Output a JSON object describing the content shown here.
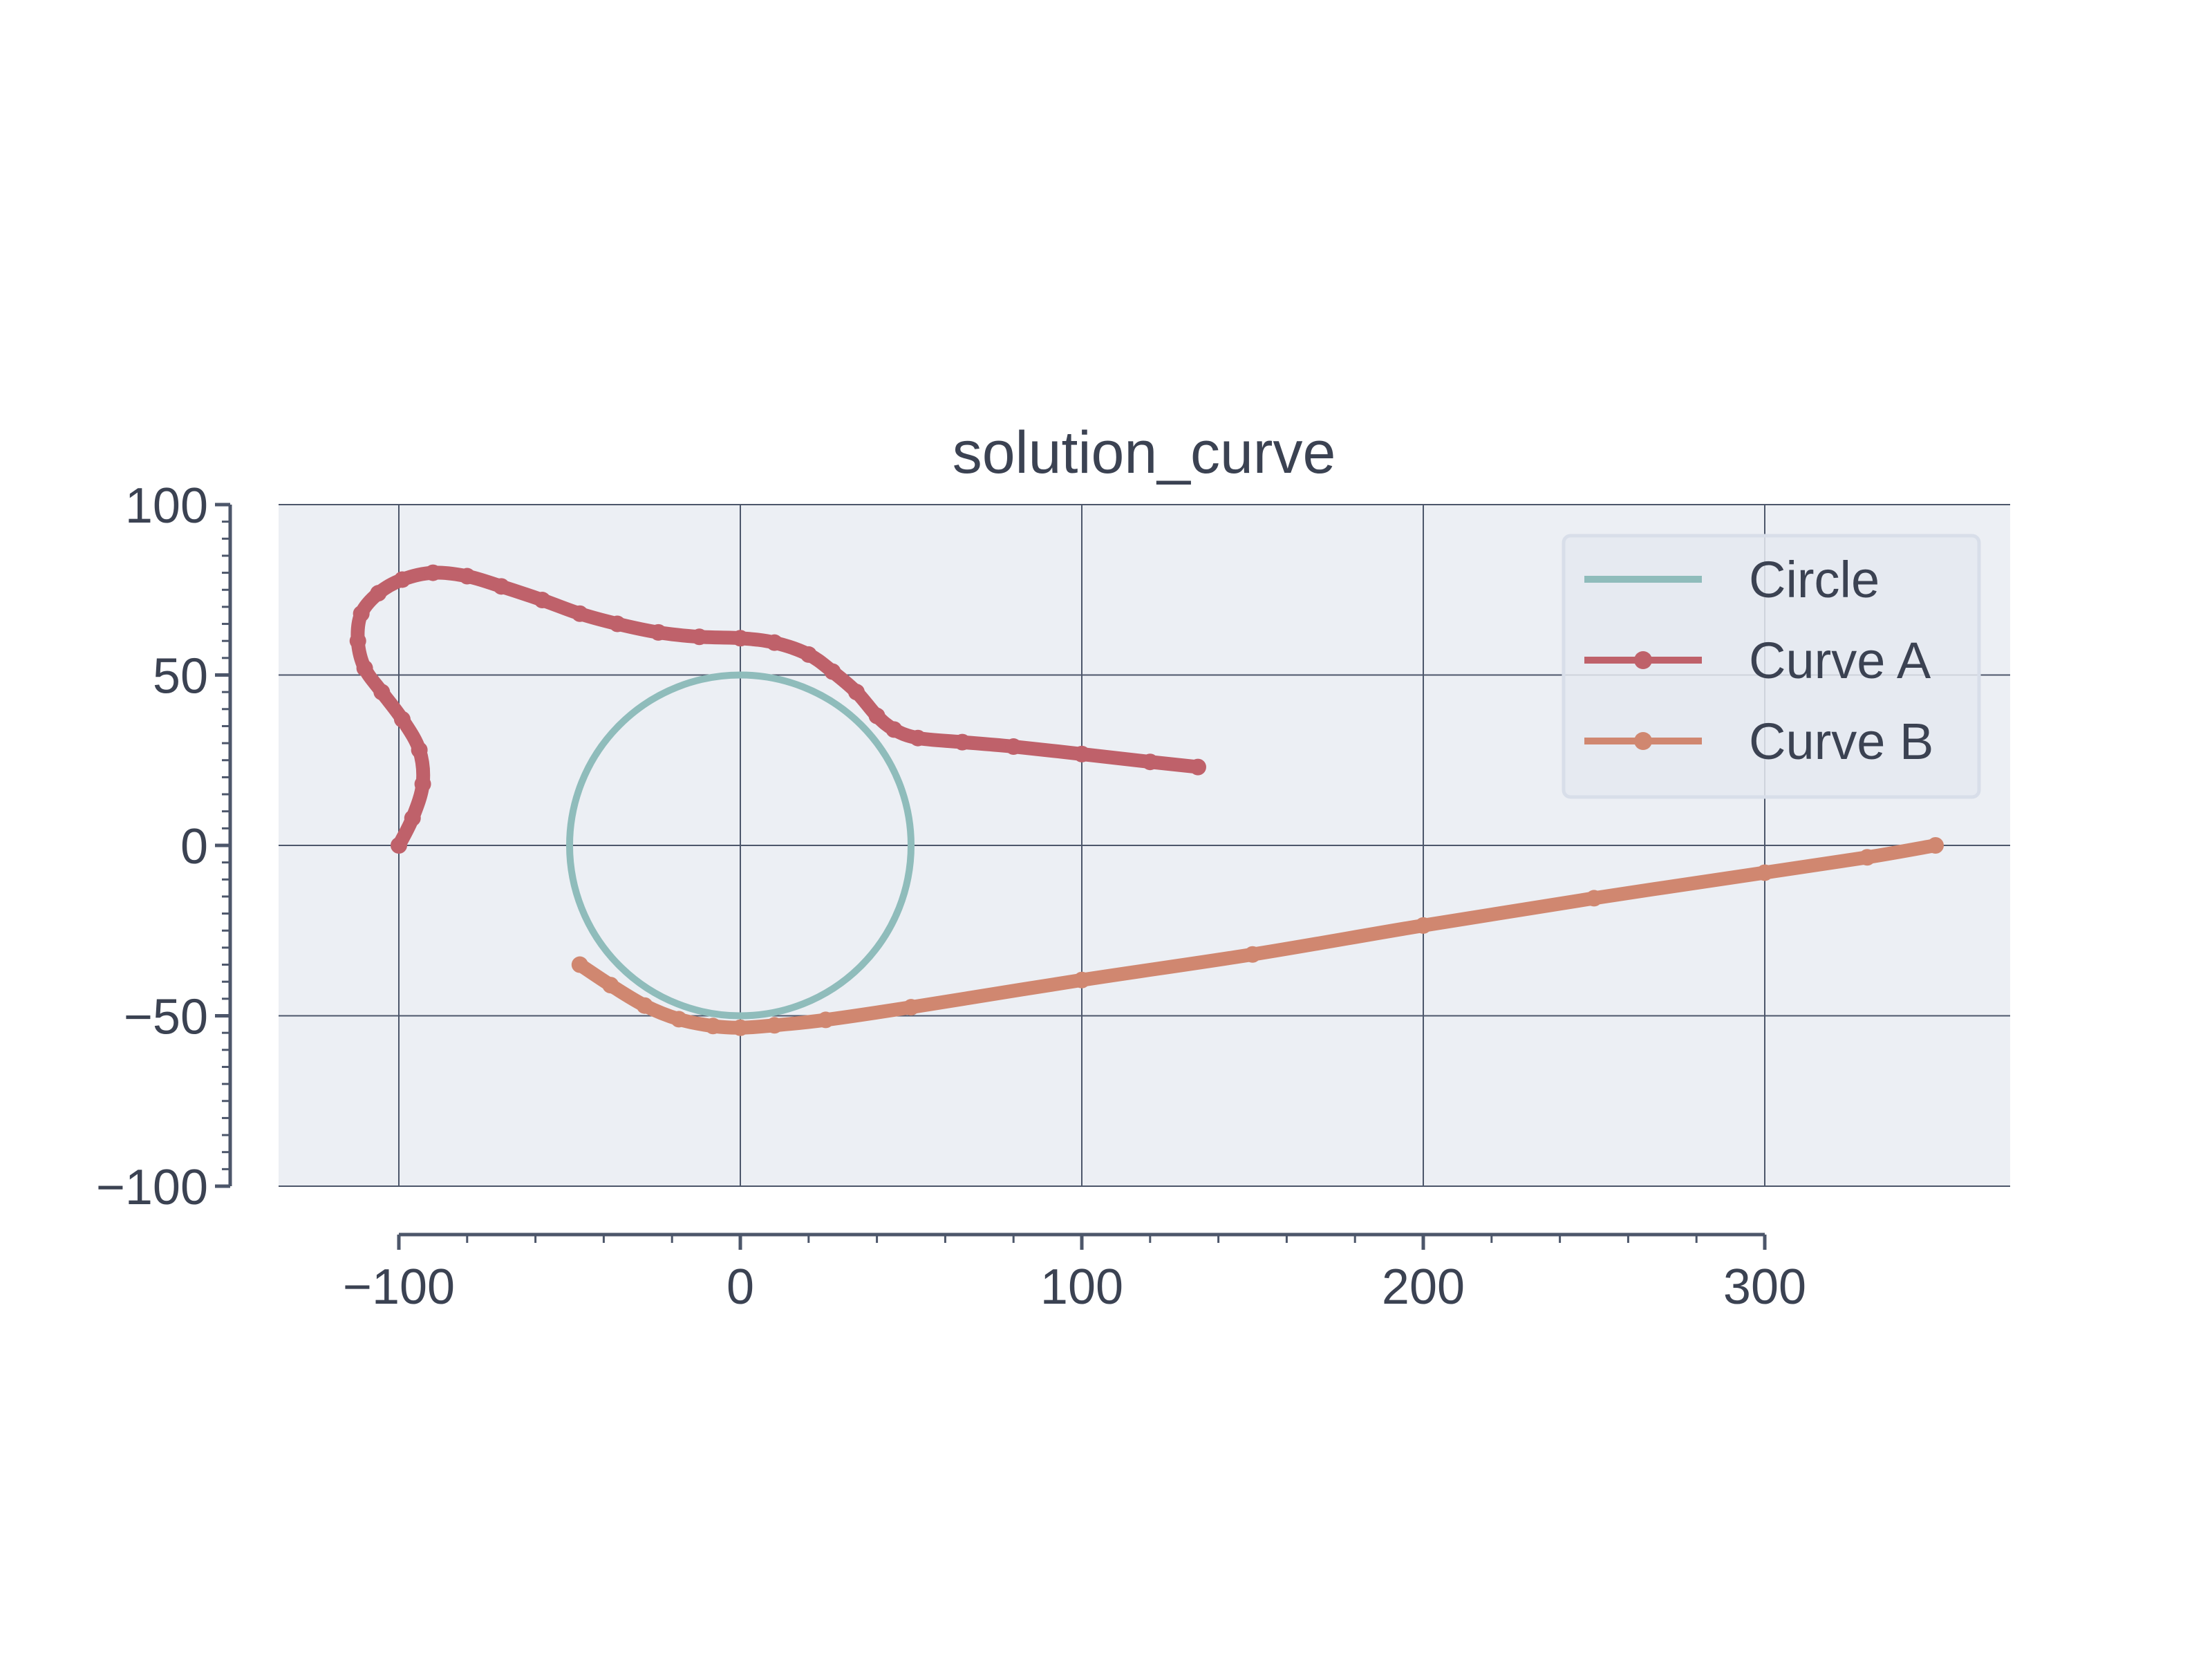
{
  "chart_data": {
    "type": "line",
    "title": "solution_curve",
    "xlabel": "",
    "ylabel": "",
    "xlim": [
      -135,
      372
    ],
    "ylim": [
      -100,
      100
    ],
    "x_ticks": [
      -100,
      0,
      100,
      200,
      300
    ],
    "y_ticks": [
      -100,
      -50,
      0,
      50,
      100
    ],
    "x_tick_labels": [
      "−100",
      "0",
      "100",
      "200",
      "300"
    ],
    "y_tick_labels": [
      "−100",
      "−50",
      "0",
      "50",
      "100"
    ],
    "grid": true,
    "legend_position": "top-right",
    "series": [
      {
        "name": "Circle",
        "color": "#8fbcbb",
        "marker": false,
        "shape": "circle",
        "center": [
          0,
          0
        ],
        "radius": 50
      },
      {
        "name": "Curve A",
        "color": "#bf616a",
        "marker": true,
        "points": [
          [
            -100,
            0
          ],
          [
            -96,
            8
          ],
          [
            -93,
            18
          ],
          [
            -94,
            28
          ],
          [
            -99,
            37
          ],
          [
            -105,
            45
          ],
          [
            -110,
            52
          ],
          [
            -112,
            60
          ],
          [
            -111,
            68
          ],
          [
            -106,
            74
          ],
          [
            -99,
            78
          ],
          [
            -90,
            80
          ],
          [
            -80,
            79
          ],
          [
            -70,
            76
          ],
          [
            -58,
            72
          ],
          [
            -47,
            68
          ],
          [
            -36,
            65
          ],
          [
            -24,
            62.5
          ],
          [
            -12,
            61.2
          ],
          [
            0,
            60.8
          ],
          [
            10,
            59.5
          ],
          [
            20,
            56
          ],
          [
            27,
            51
          ],
          [
            34,
            45
          ],
          [
            40,
            38
          ],
          [
            45,
            34
          ],
          [
            52,
            31.5
          ],
          [
            65,
            30.3
          ],
          [
            80,
            29
          ],
          [
            100,
            26.8
          ],
          [
            120,
            24.5
          ],
          [
            134,
            23
          ]
        ]
      },
      {
        "name": "Curve B",
        "color": "#d08770",
        "marker": true,
        "points": [
          [
            -47,
            -35
          ],
          [
            -38,
            -41
          ],
          [
            -28,
            -47
          ],
          [
            -18,
            -51
          ],
          [
            -8,
            -53
          ],
          [
            0,
            -53.5
          ],
          [
            10,
            -52.8
          ],
          [
            25,
            -51.2
          ],
          [
            50,
            -47.5
          ],
          [
            100,
            -39.5
          ],
          [
            150,
            -32
          ],
          [
            200,
            -23.5
          ],
          [
            250,
            -15.5
          ],
          [
            300,
            -8
          ],
          [
            330,
            -3.5
          ],
          [
            350,
            0
          ]
        ]
      }
    ]
  }
}
